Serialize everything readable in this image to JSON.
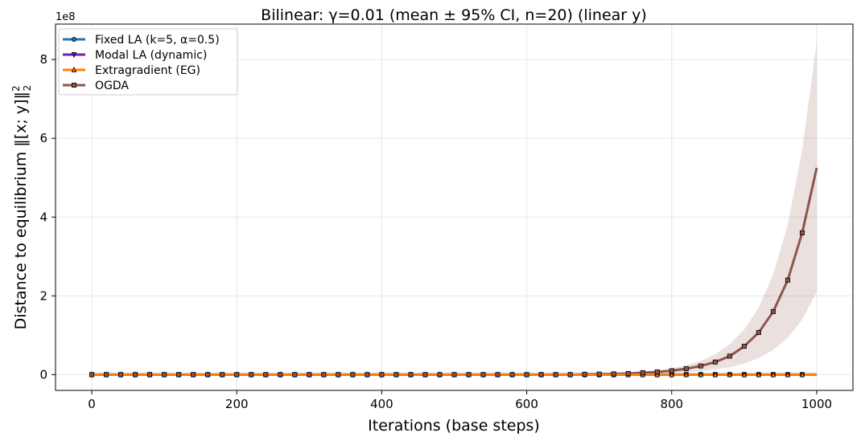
{
  "chart_data": {
    "type": "line",
    "title": "Bilinear: γ=0.01  (mean ± 95% CI, n=20) (linear y)",
    "xlabel": "Iterations (base steps)",
    "ylabel_text": "Distance to equilibrium ‖[x; y]‖",
    "ylabel_sup": "2",
    "ylabel_sub": "2",
    "y_offset_label": "1e8",
    "xlim": [
      -50,
      1050
    ],
    "ylim": [
      -0.4,
      8.9
    ],
    "y_unit_scale": 100000000,
    "x_ticks": [
      0,
      200,
      400,
      600,
      800,
      1000
    ],
    "x_tick_labels": [
      "0",
      "200",
      "400",
      "600",
      "800",
      "1000"
    ],
    "y_ticks": [
      0,
      2,
      4,
      6,
      8
    ],
    "y_tick_labels": [
      "0",
      "2",
      "4",
      "6",
      "8"
    ],
    "grid": true,
    "legend_position": "top-left",
    "series": [
      {
        "name": "Fixed LA (k=5, α=0.5)",
        "color": "#1f77b4",
        "marker": "circle",
        "x": [
          0,
          1000
        ],
        "y": [
          0,
          0
        ]
      },
      {
        "name": "Modal LA (dynamic)",
        "color": "#6a1fb0",
        "marker": "triangle-down",
        "x": [
          0,
          1000
        ],
        "y": [
          0,
          0
        ]
      },
      {
        "name": "Extragradient (EG)",
        "color": "#ff7f0e",
        "marker": "triangle-up",
        "x": [
          0,
          1000
        ],
        "y": [
          0,
          0
        ]
      },
      {
        "name": "OGDA",
        "color": "#8c564b",
        "band_color": "#8c564b",
        "marker": "square",
        "x": [
          0,
          20,
          40,
          60,
          80,
          100,
          120,
          140,
          160,
          180,
          200,
          220,
          240,
          260,
          280,
          300,
          320,
          340,
          360,
          380,
          400,
          420,
          440,
          460,
          480,
          500,
          520,
          540,
          560,
          580,
          600,
          620,
          640,
          660,
          680,
          700,
          720,
          740,
          760,
          780,
          800,
          820,
          840,
          860,
          880,
          900,
          920,
          940,
          960,
          980,
          1000
        ],
        "y": [
          0,
          0,
          0,
          0,
          0,
          0,
          0,
          0,
          0,
          0,
          0,
          0,
          0,
          0,
          0,
          0,
          0,
          0,
          0,
          0,
          0,
          0,
          0,
          0,
          0,
          0,
          0,
          0,
          0,
          0,
          0,
          0,
          0,
          0,
          0.01,
          0.015,
          0.02,
          0.03,
          0.05,
          0.07,
          0.1,
          0.15,
          0.22,
          0.32,
          0.47,
          0.72,
          1.07,
          1.6,
          2.4,
          3.6,
          5.25
        ],
        "ci_low": [
          0,
          0,
          0,
          0,
          0,
          0,
          0,
          0,
          0,
          0,
          0,
          0,
          0,
          0,
          0,
          0,
          0,
          0,
          0,
          0,
          0,
          0,
          0,
          0,
          0,
          0,
          0,
          0,
          0,
          0,
          0,
          0,
          0,
          0,
          0.005,
          0.008,
          0.01,
          0.015,
          0.02,
          0.03,
          0.04,
          0.06,
          0.09,
          0.13,
          0.19,
          0.28,
          0.42,
          0.63,
          0.93,
          1.4,
          2.1
        ],
        "ci_high": [
          0,
          0,
          0,
          0,
          0,
          0,
          0,
          0,
          0,
          0,
          0,
          0,
          0,
          0,
          0,
          0,
          0,
          0,
          0,
          0,
          0,
          0,
          0,
          0,
          0,
          0,
          0,
          0,
          0,
          0,
          0,
          0,
          0,
          0,
          0.015,
          0.025,
          0.035,
          0.05,
          0.08,
          0.11,
          0.16,
          0.24,
          0.35,
          0.52,
          0.77,
          1.15,
          1.7,
          2.55,
          3.8,
          5.7,
          8.45
        ]
      }
    ]
  }
}
